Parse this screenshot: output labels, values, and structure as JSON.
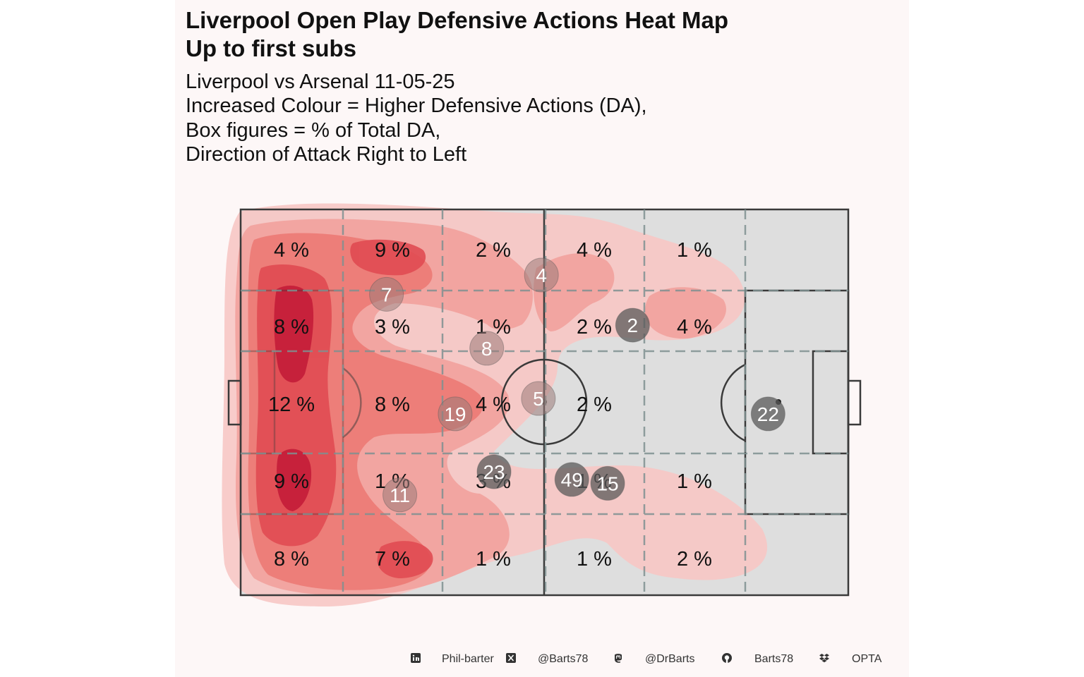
{
  "chart_data": {
    "type": "heatmap",
    "title_lines": [
      "Liverpool Open Play Defensive Actions Heat Map",
      "Up to first subs"
    ],
    "subtitle_lines": [
      "Liverpool vs Arsenal 11-05-25",
      "Increased Colour = Higher Defensive Actions (DA),",
      "Box figures = % of Total DA,",
      "Direction of Attack Right to Left"
    ],
    "zones": {
      "rows": 5,
      "cols": 6,
      "percent_labels": [
        [
          "4 %",
          "9 %",
          "2 %",
          "4 %",
          "1 %",
          ""
        ],
        [
          "8 %",
          "3 %",
          "1 %",
          "2 %",
          "4 %",
          ""
        ],
        [
          "12 %",
          "8 %",
          "4 %",
          "2 %",
          "",
          ""
        ],
        [
          "9 %",
          "1 %",
          "3 %",
          "1 %",
          "1 %",
          ""
        ],
        [
          "8 %",
          "7 %",
          "1 %",
          "1 %",
          "2 %",
          ""
        ]
      ]
    },
    "player_positions": [
      {
        "number": "4",
        "x": 0.495,
        "y": 0.17,
        "shade": "light"
      },
      {
        "number": "7",
        "x": 0.24,
        "y": 0.22,
        "shade": "light"
      },
      {
        "number": "2",
        "x": 0.645,
        "y": 0.3,
        "shade": "dark"
      },
      {
        "number": "8",
        "x": 0.405,
        "y": 0.36,
        "shade": "light"
      },
      {
        "number": "5",
        "x": 0.49,
        "y": 0.49,
        "shade": "light"
      },
      {
        "number": "19",
        "x": 0.353,
        "y": 0.53,
        "shade": "light"
      },
      {
        "number": "22",
        "x": 0.868,
        "y": 0.53,
        "shade": "dark"
      },
      {
        "number": "23",
        "x": 0.417,
        "y": 0.68,
        "shade": "dark"
      },
      {
        "number": "49",
        "x": 0.545,
        "y": 0.7,
        "shade": "dark"
      },
      {
        "number": "15",
        "x": 0.604,
        "y": 0.71,
        "shade": "dark"
      },
      {
        "number": "11",
        "x": 0.262,
        "y": 0.74,
        "shade": "light"
      }
    ],
    "heat_color_scale": [
      "#f7c6c4",
      "#f08a84",
      "#e55a5a",
      "#d42f3f",
      "#b81433"
    ],
    "legend": "none"
  },
  "footer": {
    "items": [
      {
        "icon": "linkedin-icon",
        "label": "Phil-barter"
      },
      {
        "icon": "x-icon",
        "label": "@Barts78"
      },
      {
        "icon": "mastodon-icon",
        "label": "@DrBarts"
      },
      {
        "icon": "github-icon",
        "label": "Barts78"
      },
      {
        "icon": "dropbox-icon",
        "label": "OPTA"
      }
    ]
  },
  "colors": {
    "background": "#fdf7f7",
    "pitch": "#dedede",
    "zone_lines": "#7f9191"
  }
}
